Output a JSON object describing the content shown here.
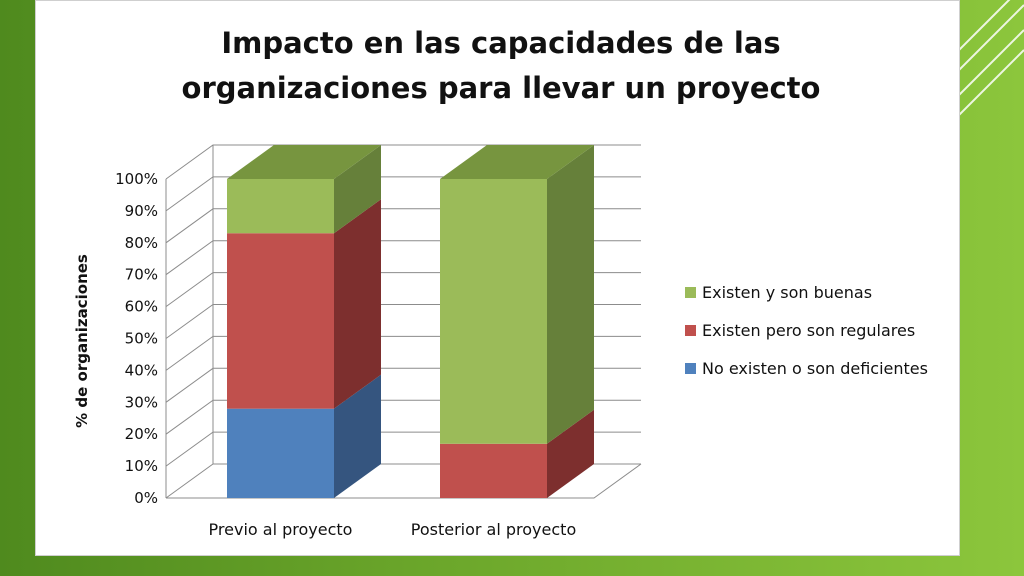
{
  "slide": {
    "background_colors": [
      "#4f8a1e",
      "#8cc63c"
    ],
    "decoration": "diagonal-lines"
  },
  "chart_data": {
    "type": "bar",
    "stacked": true,
    "percent_stacked": true,
    "three_d": true,
    "title_lines": [
      "Impacto en las capacidades de las",
      "organizaciones para llevar un proyecto"
    ],
    "ylabel": "% de organizaciones",
    "xlabel": "",
    "ylim": [
      0,
      100
    ],
    "yticks": [
      "0%",
      "10%",
      "20%",
      "30%",
      "40%",
      "50%",
      "60%",
      "70%",
      "80%",
      "90%",
      "100%"
    ],
    "categories": [
      "Previo al proyecto",
      "Posterior al proyecto"
    ],
    "series": [
      {
        "name": "No existen o son deficientes",
        "values": [
          28,
          0
        ],
        "color": "#4f81bd",
        "side_color": "#35557f",
        "top_color": "#5a7fb0"
      },
      {
        "name": "Existen pero son regulares",
        "values": [
          55,
          17
        ],
        "color": "#c0504d",
        "side_color": "#7d2f2e",
        "top_color": "#a34440"
      },
      {
        "name": "Existen y son buenas",
        "values": [
          17,
          83
        ],
        "color": "#9bbb59",
        "side_color": "#66803a",
        "top_color": "#77953f"
      }
    ],
    "legend_order": [
      "Existen y son buenas",
      "Existen pero son regulares",
      "No existen o son deficientes"
    ],
    "legend_position": "right",
    "grid": true
  }
}
